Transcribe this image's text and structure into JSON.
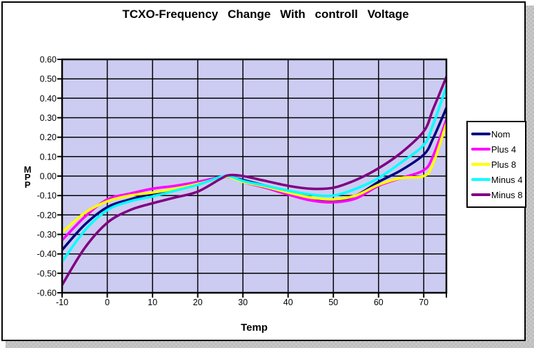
{
  "frame": {
    "background": "#ffffff",
    "border_color": "#000000",
    "shadow_color": "#bdbdbd"
  },
  "chart_data": {
    "type": "line",
    "title": "TCXO-Frequency Change With controll Voltage",
    "xlabel": "Temp",
    "ylabel": "MPP",
    "xlim": [
      -10,
      75
    ],
    "ylim": [
      -0.6,
      0.6
    ],
    "grid": true,
    "legend_position": "right",
    "plot_bg": "#ccccf2",
    "grid_color": "#000000",
    "x_ticks": [
      -10,
      0,
      10,
      20,
      30,
      40,
      50,
      60,
      70
    ],
    "x_tick_labels": [
      "-10",
      "0",
      "10",
      "20",
      "30",
      "40",
      "50",
      "60",
      "70"
    ],
    "y_ticks": [
      0.6,
      0.5,
      0.4,
      0.3,
      0.2,
      0.1,
      0.0,
      -0.1,
      -0.2,
      -0.3,
      -0.4,
      -0.5,
      -0.6
    ],
    "y_tick_labels": [
      "0.60",
      "0.50",
      "0.40",
      "0.30",
      "0.20",
      "0.10",
      "0.00",
      "-0.10",
      "-0.20",
      "-0.30",
      "-0.40",
      "-0.50",
      "-0.60"
    ],
    "x": [
      -10,
      -5,
      0,
      5,
      10,
      15,
      20,
      25,
      27,
      30,
      35,
      40,
      45,
      50,
      55,
      60,
      65,
      70,
      72,
      75
    ],
    "series": [
      {
        "name": "Nom",
        "color": "#000080",
        "values": [
          -0.38,
          -0.25,
          -0.16,
          -0.12,
          -0.09,
          -0.07,
          -0.04,
          -0.01,
          -0.005,
          -0.02,
          -0.05,
          -0.08,
          -0.11,
          -0.125,
          -0.1,
          -0.03,
          0.03,
          0.11,
          0.19,
          0.35
        ]
      },
      {
        "name": "Plus 4",
        "color": "#ff00ff",
        "values": [
          -0.33,
          -0.21,
          -0.12,
          -0.09,
          -0.065,
          -0.05,
          -0.03,
          -0.005,
          0.0,
          -0.03,
          -0.06,
          -0.095,
          -0.125,
          -0.135,
          -0.115,
          -0.05,
          -0.01,
          0.03,
          0.1,
          0.29
        ]
      },
      {
        "name": "Plus 8",
        "color": "#ffff00",
        "values": [
          -0.29,
          -0.19,
          -0.13,
          -0.1,
          -0.085,
          -0.065,
          -0.04,
          -0.01,
          -0.005,
          -0.03,
          -0.055,
          -0.085,
          -0.11,
          -0.12,
          -0.1,
          -0.045,
          -0.01,
          0.0,
          0.06,
          0.27
        ]
      },
      {
        "name": "Minus 4",
        "color": "#00ffff",
        "values": [
          -0.44,
          -0.28,
          -0.175,
          -0.13,
          -0.105,
          -0.075,
          -0.045,
          -0.005,
          0.0,
          -0.025,
          -0.05,
          -0.075,
          -0.095,
          -0.1,
          -0.065,
          -0.01,
          0.07,
          0.16,
          0.26,
          0.46
        ]
      },
      {
        "name": "Minus 8",
        "color": "#800080",
        "values": [
          -0.56,
          -0.37,
          -0.24,
          -0.175,
          -0.14,
          -0.11,
          -0.08,
          -0.015,
          0.005,
          0.0,
          -0.025,
          -0.05,
          -0.065,
          -0.06,
          -0.02,
          0.04,
          0.12,
          0.23,
          0.34,
          0.51
        ]
      }
    ]
  }
}
